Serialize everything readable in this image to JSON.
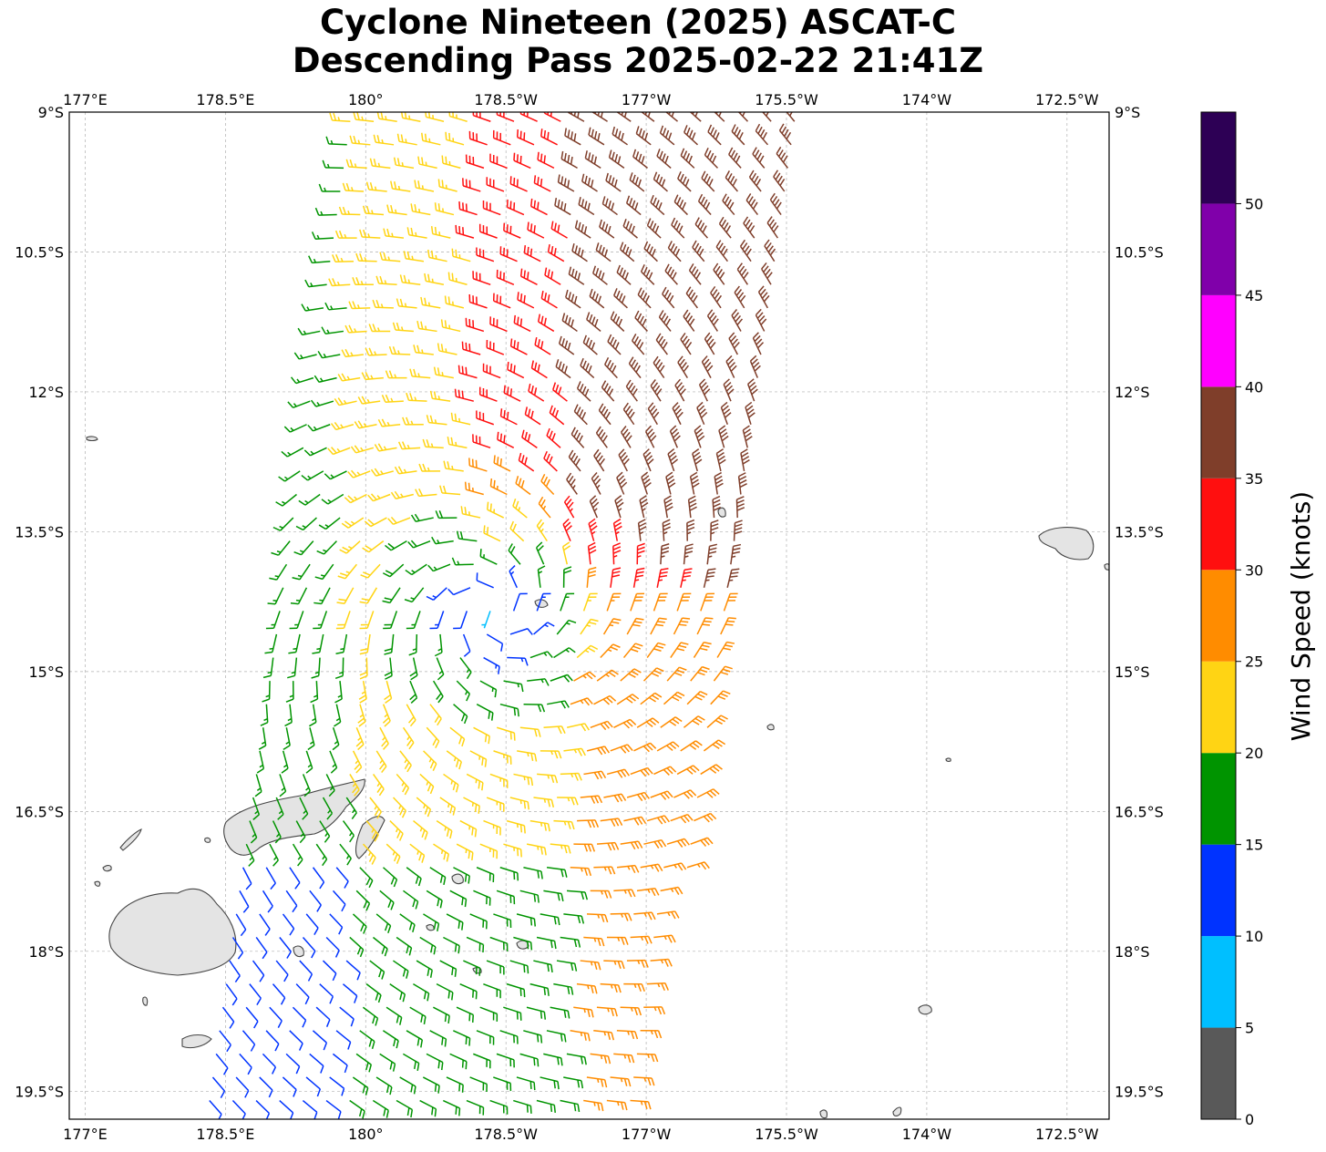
{
  "title": {
    "line1": "Cyclone Nineteen (2025) ASCAT-C",
    "line2": "Descending Pass 2025-02-22 21:41Z"
  },
  "map": {
    "lon_ticks": [
      {
        "value": 177.0,
        "label": "177°E"
      },
      {
        "value": 178.5,
        "label": "178.5°E"
      },
      {
        "value": 180.0,
        "label": "180°"
      },
      {
        "value": 181.5,
        "label": "178.5°W"
      },
      {
        "value": 183.0,
        "label": "177°W"
      },
      {
        "value": 184.5,
        "label": "175.5°W"
      },
      {
        "value": 186.0,
        "label": "174°W"
      },
      {
        "value": 187.5,
        "label": "172.5°W"
      }
    ],
    "lat_ticks": [
      {
        "value": -9.0,
        "label": "9°S"
      },
      {
        "value": -10.5,
        "label": "10.5°S"
      },
      {
        "value": -12.0,
        "label": "12°S"
      },
      {
        "value": -13.5,
        "label": "13.5°S"
      },
      {
        "value": -15.0,
        "label": "15°S"
      },
      {
        "value": -16.5,
        "label": "16.5°S"
      },
      {
        "value": -18.0,
        "label": "18°S"
      },
      {
        "value": -19.5,
        "label": "19.5°S"
      }
    ],
    "extent": {
      "lon_min": 176.83,
      "lon_max": 187.95,
      "lat_min": -19.8,
      "lat_max": -9.0
    },
    "storm_center": {
      "lon": 181.35,
      "lat": -14.35
    },
    "swath": {
      "north_lon": [
        179.85,
        184.75
      ],
      "south_lon": [
        178.3,
        183.0
      ]
    },
    "colors": {
      "land_edge": "#444444",
      "land_fill": "#e4e4e4",
      "grid": "#b0b0b0"
    }
  },
  "colorbar": {
    "label": "Wind Speed (knots)",
    "ticks": [
      "0",
      "5",
      "10",
      "15",
      "20",
      "25",
      "30",
      "35",
      "40",
      "45",
      "50"
    ],
    "bins": [
      {
        "min": 0,
        "max": 5,
        "color": "#595959"
      },
      {
        "min": 5,
        "max": 10,
        "color": "#00bfff"
      },
      {
        "min": 10,
        "max": 15,
        "color": "#0033ff"
      },
      {
        "min": 15,
        "max": 20,
        "color": "#009400"
      },
      {
        "min": 20,
        "max": 25,
        "color": "#ffd414"
      },
      {
        "min": 25,
        "max": 30,
        "color": "#ff8c00"
      },
      {
        "min": 30,
        "max": 35,
        "color": "#ff0f0f"
      },
      {
        "min": 35,
        "max": 40,
        "color": "#7f3e2a"
      },
      {
        "min": 40,
        "max": 45,
        "color": "#ff00ff"
      },
      {
        "min": 45,
        "max": 50,
        "color": "#8000aa"
      },
      {
        "min": 50,
        "max": 55,
        "color": "#2d0055"
      }
    ]
  }
}
